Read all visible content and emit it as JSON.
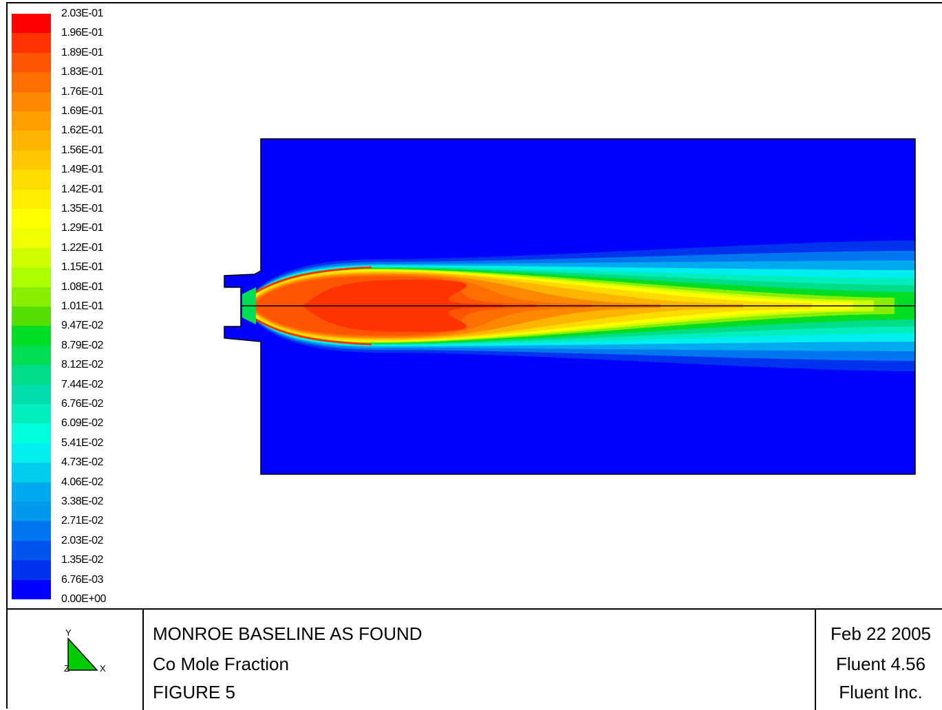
{
  "chart_data": {
    "type": "heatmap",
    "title": "Co Mole Fraction",
    "colorbar": {
      "labels": [
        "2.03E-01",
        "1.96E-01",
        "1.89E-01",
        "1.83E-01",
        "1.76E-01",
        "1.69E-01",
        "1.62E-01",
        "1.56E-01",
        "1.49E-01",
        "1.42E-01",
        "1.35E-01",
        "1.29E-01",
        "1.22E-01",
        "1.15E-01",
        "1.08E-01",
        "1.01E-01",
        "9.47E-02",
        "8.79E-02",
        "8.12E-02",
        "7.44E-02",
        "6.76E-02",
        "6.09E-02",
        "5.41E-02",
        "4.73E-02",
        "4.06E-02",
        "3.38E-02",
        "2.71E-02",
        "2.03E-02",
        "1.35E-02",
        "6.76E-03",
        "0.00E+00"
      ],
      "min": 0.0,
      "max": 0.203,
      "colors": [
        "#ff0000",
        "#ff3300",
        "#ff5500",
        "#ff6e00",
        "#ff8800",
        "#ffa000",
        "#ffb400",
        "#ffc800",
        "#ffdc00",
        "#ffee00",
        "#ffff00",
        "#eeff00",
        "#ccff00",
        "#aaff00",
        "#88ee00",
        "#55dd00",
        "#00dd22",
        "#00dd55",
        "#00dd88",
        "#00ddaa",
        "#00eebb",
        "#00ffdd",
        "#00eeee",
        "#00ccee",
        "#00aaee",
        "#0099ee",
        "#0077ee",
        "#0055ee",
        "#0033ee",
        "#0000ff"
      ]
    },
    "field": {
      "description_values": "Co mole fraction contours in a burner/furnace cross-section; peak ~0.19 near burner exit, decaying to ~0.08 at outlet along the centerline, ambient 0.00"
    }
  },
  "titleblock": {
    "line1": "MONROE BASELINE AS FOUND",
    "line2": "Co Mole Fraction",
    "line3": "FIGURE 5",
    "date": "Feb 22 2005",
    "software": "Fluent 4.56",
    "company": "Fluent Inc."
  },
  "axes_triad": {
    "y": "Y",
    "x": "X",
    "z": "Z"
  }
}
